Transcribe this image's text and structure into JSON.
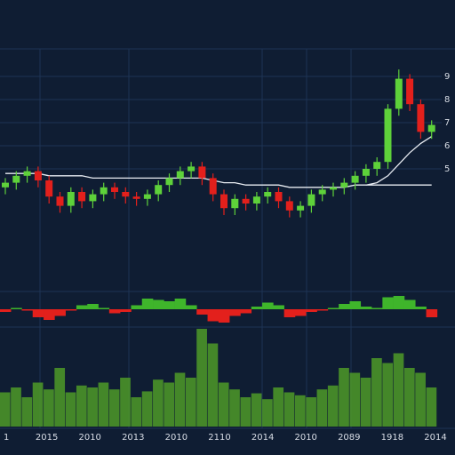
{
  "chart_data": [
    {
      "type": "candlestick",
      "open": [
        4.2,
        4.4,
        4.7,
        4.9,
        4.5,
        3.8,
        3.4,
        4.0,
        3.6,
        3.9,
        4.2,
        4.0,
        3.8,
        3.7,
        3.9,
        4.3,
        4.6,
        4.9,
        5.1,
        4.6,
        3.9,
        3.3,
        3.7,
        3.5,
        3.8,
        4.0,
        3.6,
        3.2,
        3.4,
        3.9,
        4.1,
        4.2,
        4.4,
        4.7,
        5.0,
        5.3,
        7.6,
        8.9,
        7.8,
        6.6
      ],
      "high": [
        4.6,
        4.9,
        5.1,
        5.1,
        4.7,
        4.0,
        4.2,
        4.2,
        4.1,
        4.4,
        4.4,
        4.2,
        4.0,
        4.1,
        4.5,
        4.8,
        5.1,
        5.3,
        5.3,
        4.8,
        4.1,
        3.9,
        3.9,
        4.0,
        4.2,
        4.2,
        3.8,
        3.6,
        4.1,
        4.3,
        4.4,
        4.6,
        4.9,
        5.2,
        5.5,
        7.8,
        9.3,
        9.1,
        8.0,
        7.1
      ],
      "low": [
        3.9,
        4.1,
        4.4,
        4.2,
        3.5,
        3.1,
        3.1,
        3.3,
        3.3,
        3.6,
        3.7,
        3.5,
        3.4,
        3.4,
        3.6,
        4.0,
        4.3,
        4.6,
        4.3,
        3.6,
        3.0,
        3.0,
        3.2,
        3.2,
        3.5,
        3.3,
        2.9,
        2.9,
        3.1,
        3.6,
        3.8,
        3.9,
        4.1,
        4.4,
        4.7,
        5.0,
        7.3,
        7.5,
        6.3,
        6.3
      ],
      "close": [
        4.4,
        4.7,
        4.9,
        4.5,
        3.8,
        3.4,
        4.0,
        3.6,
        3.9,
        4.2,
        4.0,
        3.8,
        3.7,
        3.9,
        4.3,
        4.6,
        4.9,
        5.1,
        4.6,
        3.9,
        3.3,
        3.7,
        3.5,
        3.8,
        4.0,
        3.6,
        3.2,
        3.4,
        3.9,
        4.1,
        4.2,
        4.4,
        4.7,
        5.0,
        5.3,
        7.6,
        8.9,
        7.8,
        6.6,
        6.9
      ],
      "up_color": "#5ed13a",
      "down_color": "#e3201c",
      "lines": [
        {
          "color": "#e8ecf2",
          "values": [
            4.8,
            4.8,
            4.8,
            4.8,
            4.7,
            4.7,
            4.7,
            4.7,
            4.6,
            4.6,
            4.6,
            4.6,
            4.6,
            4.6,
            4.6,
            4.6,
            4.6,
            4.6,
            4.6,
            4.5,
            4.4,
            4.4,
            4.3,
            4.3,
            4.3,
            4.3,
            4.2,
            4.2,
            4.2,
            4.2,
            4.2,
            4.2,
            4.3,
            4.3,
            4.4,
            4.7,
            5.2,
            5.7,
            6.1,
            6.4
          ]
        },
        {
          "color": "#e8ecf2",
          "values": [
            null,
            null,
            null,
            null,
            null,
            null,
            null,
            null,
            null,
            null,
            null,
            null,
            null,
            null,
            null,
            null,
            null,
            null,
            null,
            null,
            null,
            null,
            null,
            null,
            null,
            null,
            null,
            null,
            null,
            null,
            null,
            null,
            null,
            4.3,
            4.3,
            4.3,
            4.3,
            4.3,
            4.3,
            4.3
          ]
        }
      ],
      "ylim": [
        0,
        10
      ],
      "yticks": [
        5,
        6,
        7,
        8,
        9
      ],
      "grid": true
    },
    {
      "type": "oscillator",
      "values": [
        -0.2,
        0.1,
        -0.1,
        -0.6,
        -0.8,
        -0.5,
        -0.1,
        0.3,
        0.4,
        0.1,
        -0.3,
        -0.2,
        0.3,
        0.8,
        0.7,
        0.6,
        0.8,
        0.3,
        -0.4,
        -0.9,
        -1.0,
        -0.5,
        -0.3,
        0.2,
        0.5,
        0.3,
        -0.6,
        -0.5,
        -0.2,
        -0.1,
        0.1,
        0.4,
        0.6,
        0.2,
        0.1,
        0.9,
        1.0,
        0.7,
        0.2,
        -0.6
      ],
      "up_color": "#3fb52b",
      "down_color": "#e3201c",
      "ylim": [
        -1,
        1
      ]
    },
    {
      "type": "volume",
      "values": [
        35,
        40,
        30,
        45,
        38,
        60,
        35,
        42,
        40,
        45,
        38,
        50,
        30,
        36,
        48,
        45,
        55,
        50,
        100,
        85,
        45,
        38,
        30,
        34,
        28,
        40,
        35,
        32,
        30,
        38,
        42,
        60,
        55,
        50,
        70,
        65,
        75,
        60,
        55,
        40
      ],
      "color": "#4e9a28",
      "ylim": [
        0,
        100
      ],
      "x_labels": [
        "1",
        "2015",
        "2010",
        "2013",
        "2010",
        "2110",
        "2014",
        "2010",
        "2089",
        "1918",
        "2014"
      ]
    }
  ]
}
